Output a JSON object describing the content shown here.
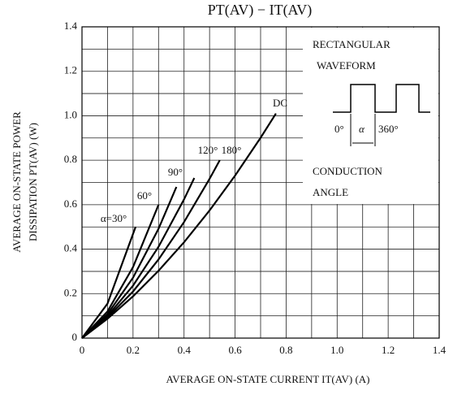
{
  "chart_data": {
    "type": "line",
    "title": "PT(AV) − IT(AV)",
    "x_label": "AVERAGE ON-STATE CURRENT  IT(AV)  (A)",
    "y_label": [
      "AVERAGE ON-STATE POWER",
      "DISSIPATION PT(AV)   (W)"
    ],
    "xlim": [
      0,
      1.4
    ],
    "ylim": [
      0,
      1.4
    ],
    "xticks": [
      0,
      0.2,
      0.4,
      0.6,
      0.8,
      {
        "value": 1,
        "label": "1.0"
      },
      1.2,
      1.4
    ],
    "yticks": [
      0,
      0.2,
      0.4,
      0.6,
      0.8,
      {
        "value": 1,
        "label": "1.0"
      },
      1.2,
      1.4
    ],
    "x_minor_ticks": [
      0.1,
      0.3,
      0.5,
      0.7,
      0.9,
      1.1,
      1.3
    ],
    "y_minor_ticks": [
      0.1,
      0.3,
      0.5,
      0.7,
      0.9,
      1.1,
      1.3
    ],
    "grid": true,
    "legend_box": {
      "title": [
        "RECTANGULAR",
        "WAVEFORM"
      ],
      "start": "0°",
      "alpha": "α",
      "end": "360°",
      "caption": [
        "CONDUCTION",
        "ANGLE"
      ]
    },
    "series": [
      {
        "name": "α=30°",
        "color": "#000000",
        "x": [
          0,
          0.1,
          0.21
        ],
        "values": [
          0,
          0.155,
          0.5
        ]
      },
      {
        "name": "60°",
        "color": "#000000",
        "x": [
          0,
          0.1,
          0.2,
          0.3
        ],
        "values": [
          0,
          0.12,
          0.32,
          0.6
        ]
      },
      {
        "name": "90°",
        "color": "#000000",
        "x": [
          0,
          0.1,
          0.2,
          0.3,
          0.37
        ],
        "values": [
          0,
          0.108,
          0.272,
          0.492,
          0.68
        ]
      },
      {
        "name": "120°",
        "color": "#000000",
        "x": [
          0,
          0.1,
          0.2,
          0.3,
          0.4,
          0.44
        ],
        "values": [
          0,
          0.099,
          0.236,
          0.411,
          0.624,
          0.72
        ]
      },
      {
        "name": "180°",
        "color": "#000000",
        "x": [
          0,
          0.1,
          0.2,
          0.3,
          0.4,
          0.5,
          0.54
        ],
        "values": [
          0,
          0.093,
          0.21,
          0.354,
          0.522,
          0.716,
          0.8
        ]
      },
      {
        "name": "DC",
        "color": "#000000",
        "x": [
          0,
          0.1,
          0.2,
          0.3,
          0.4,
          0.5,
          0.6,
          0.7,
          0.76
        ],
        "values": [
          0,
          0.087,
          0.188,
          0.303,
          0.431,
          0.574,
          0.731,
          0.901,
          1.01
        ]
      }
    ]
  }
}
